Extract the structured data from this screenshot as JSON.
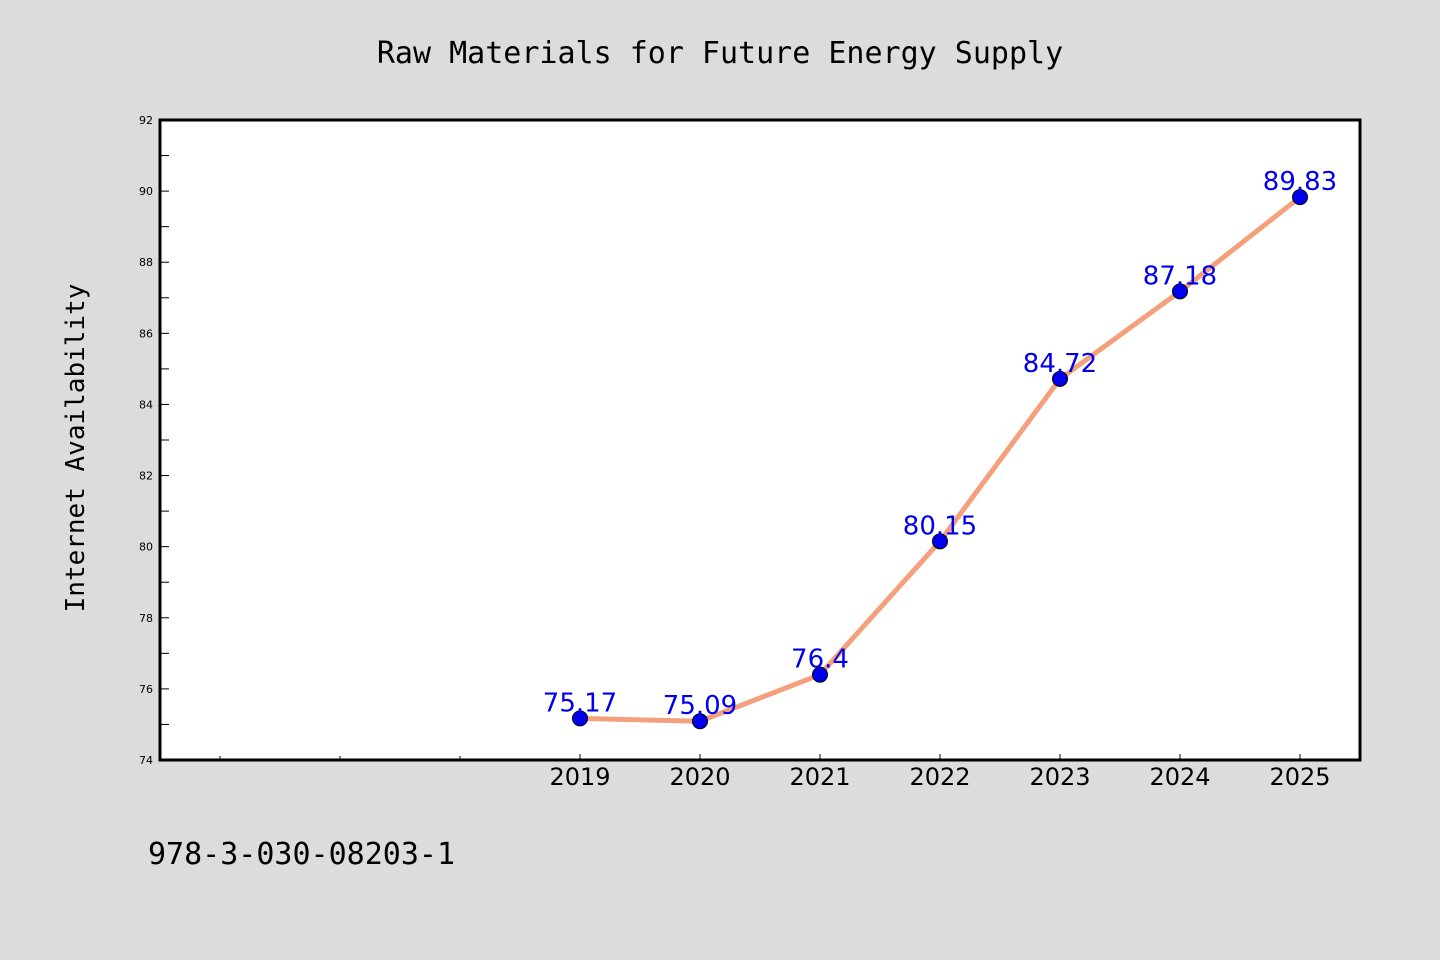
{
  "chart_data": {
    "type": "line",
    "title": "Raw Materials for Future Energy Supply",
    "xlabel": "",
    "ylabel": "Internet Availability",
    "categories": [
      "2019",
      "2020",
      "2021",
      "2022",
      "2023",
      "2024",
      "2025"
    ],
    "series": [
      {
        "values": [
          75.17,
          75.09,
          76.4,
          80.15,
          84.72,
          87.18,
          89.83
        ],
        "data_labels": [
          "75.17",
          "75.09",
          "76.4",
          "80.15",
          "84.72",
          "87.18",
          "89.83"
        ],
        "line_color": "#f4a07c",
        "marker_color": "#0000ee"
      }
    ],
    "ylim": [
      74,
      92
    ],
    "yticks": [
      "74",
      "76",
      "78",
      "80",
      "82",
      "84",
      "86",
      "88",
      "90",
      "92"
    ],
    "grid": false,
    "legend": "none"
  },
  "footer": {
    "isbn": "978-3-030-08203-1"
  },
  "colors": {
    "background": "#dcdcdc",
    "plot_background": "#ffffff",
    "label_color": "#0000ee"
  }
}
